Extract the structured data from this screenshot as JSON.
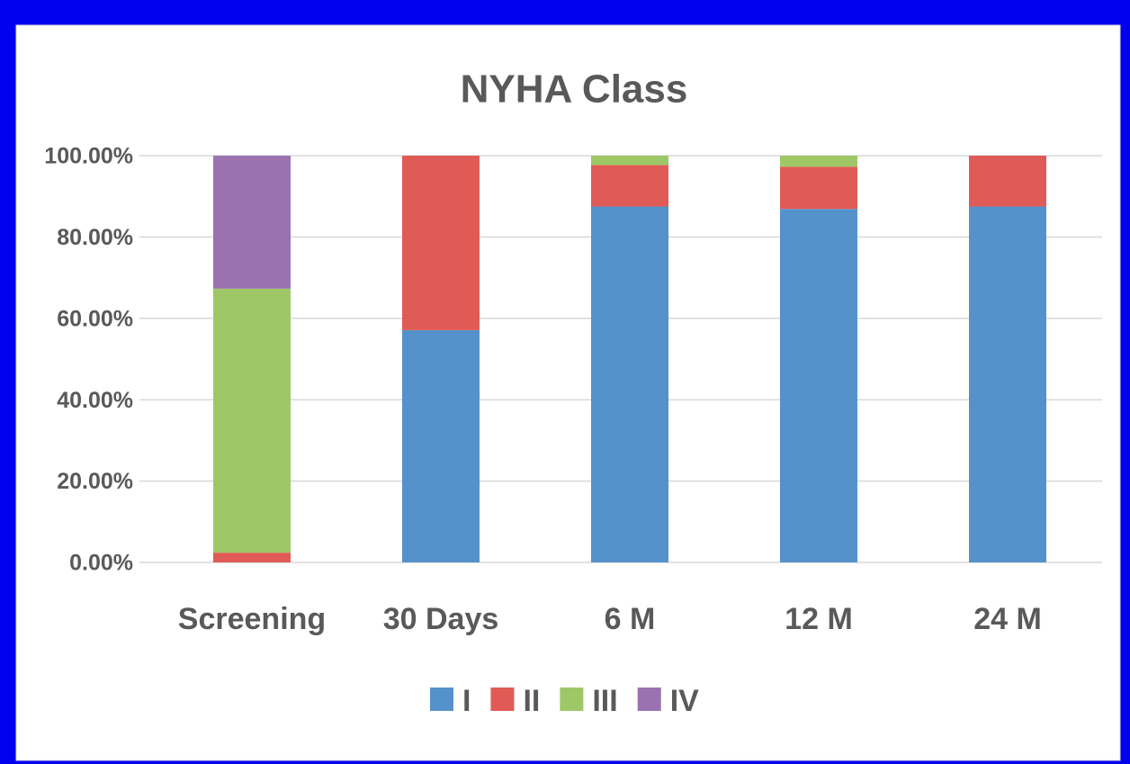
{
  "chart_data": {
    "type": "stacked_bar",
    "title": "NYHA Class",
    "categories": [
      "Screening",
      "30 Days",
      "6 M",
      "12 M",
      "24 M"
    ],
    "series": [
      {
        "name": "I",
        "color": "#5591cb",
        "values": [
          0,
          57.1,
          87.5,
          86.9,
          87.5
        ]
      },
      {
        "name": "II",
        "color": "#e05b55",
        "values": [
          2.4,
          42.9,
          10.2,
          10.4,
          12.5
        ]
      },
      {
        "name": "III",
        "color": "#9ec867",
        "values": [
          64.9,
          0,
          2.3,
          2.7,
          0
        ]
      },
      {
        "name": "IV",
        "color": "#9b72b0",
        "values": [
          32.7,
          0,
          0,
          0,
          0
        ]
      }
    ],
    "ylim": [
      0,
      100
    ],
    "yticks": [
      {
        "value": 0,
        "label": "0.00%"
      },
      {
        "value": 20,
        "label": "20.00%"
      },
      {
        "value": 40,
        "label": "40.00%"
      },
      {
        "value": 60,
        "label": "60.00%"
      },
      {
        "value": 80,
        "label": "80.00%"
      },
      {
        "value": 100,
        "label": "100.00%"
      }
    ],
    "grid": true,
    "legend": "bottom"
  }
}
